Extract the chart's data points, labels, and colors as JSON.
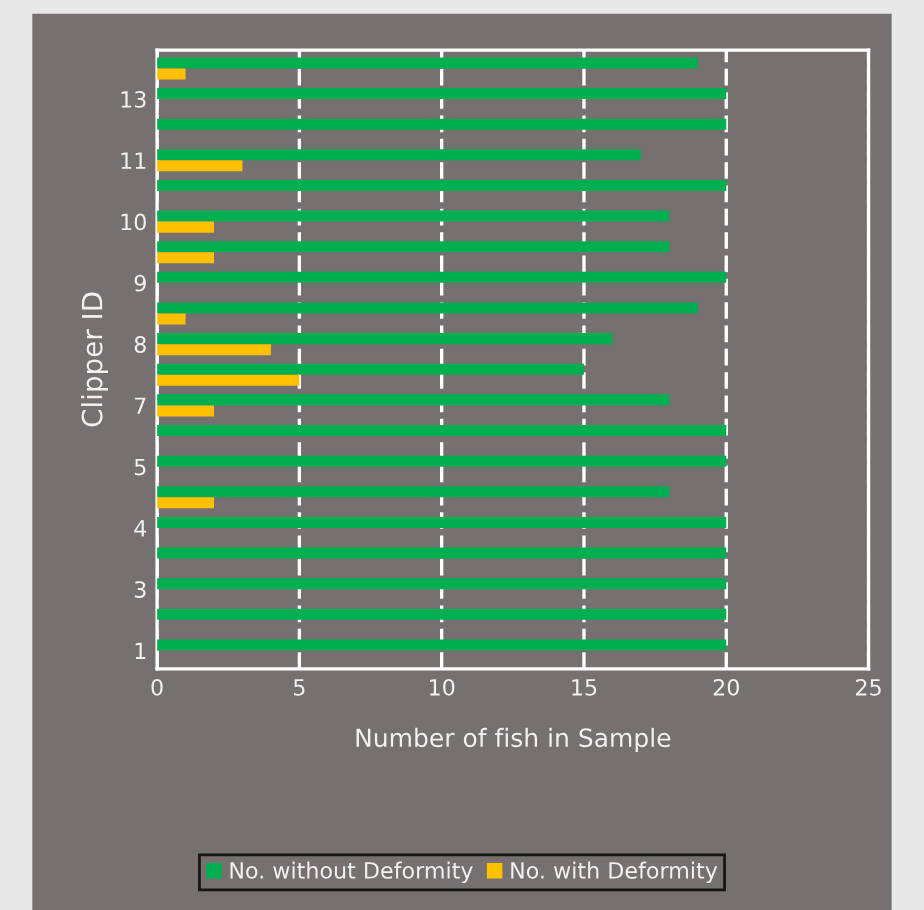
{
  "chart_data": {
    "type": "bar",
    "orientation": "horizontal",
    "categories": [
      null,
      "13",
      null,
      "11",
      null,
      "10",
      null,
      "9",
      null,
      "8",
      null,
      "7",
      null,
      "5",
      null,
      "4",
      null,
      "3",
      null,
      "1"
    ],
    "series": [
      {
        "name": "No. without Deformity",
        "color": "#00b050",
        "values": [
          19,
          20,
          20,
          17,
          20,
          18,
          18,
          20,
          19,
          16,
          15,
          18,
          20,
          20,
          18,
          20,
          20,
          20,
          20,
          20
        ]
      },
      {
        "name": "No. with Deformity",
        "color": "#ffc000",
        "values": [
          1,
          0,
          0,
          3,
          0,
          2,
          2,
          0,
          1,
          4,
          5,
          2,
          0,
          0,
          2,
          0,
          0,
          0,
          0,
          0
        ]
      }
    ],
    "xlabel": "Number of fish in Sample",
    "ylabel": "Clipper ID",
    "xlim": [
      0,
      25
    ],
    "xticks": [
      0,
      5,
      10,
      15,
      20,
      25
    ],
    "grid": "x",
    "line_style": "dashed",
    "legend": "bottom"
  }
}
